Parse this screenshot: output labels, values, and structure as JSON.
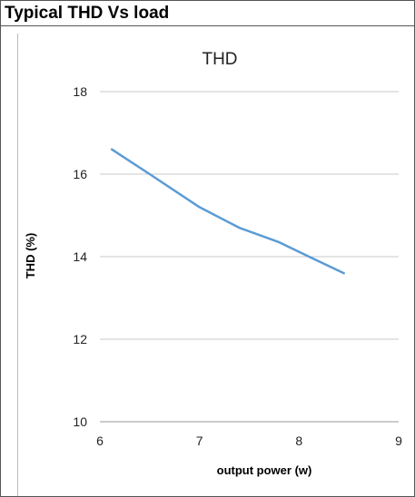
{
  "header": {
    "title": "Typical THD Vs load"
  },
  "chart_data": {
    "type": "line",
    "title": "THD",
    "xlabel": "output power (w)",
    "ylabel": "THD (%)",
    "xlim": [
      6,
      9
    ],
    "ylim": [
      10,
      18
    ],
    "xticks": [
      "6",
      "7",
      "8",
      "9"
    ],
    "yticks": [
      "10",
      "12",
      "14",
      "16",
      "18"
    ],
    "grid": "horizontal",
    "series": [
      {
        "x": [
          6.12,
          6.5,
          7.0,
          7.4,
          7.8,
          8.1,
          8.45
        ],
        "y": [
          16.6,
          16.0,
          15.2,
          14.7,
          14.35,
          14.0,
          13.6
        ],
        "color": "#5b9bd5"
      }
    ]
  }
}
